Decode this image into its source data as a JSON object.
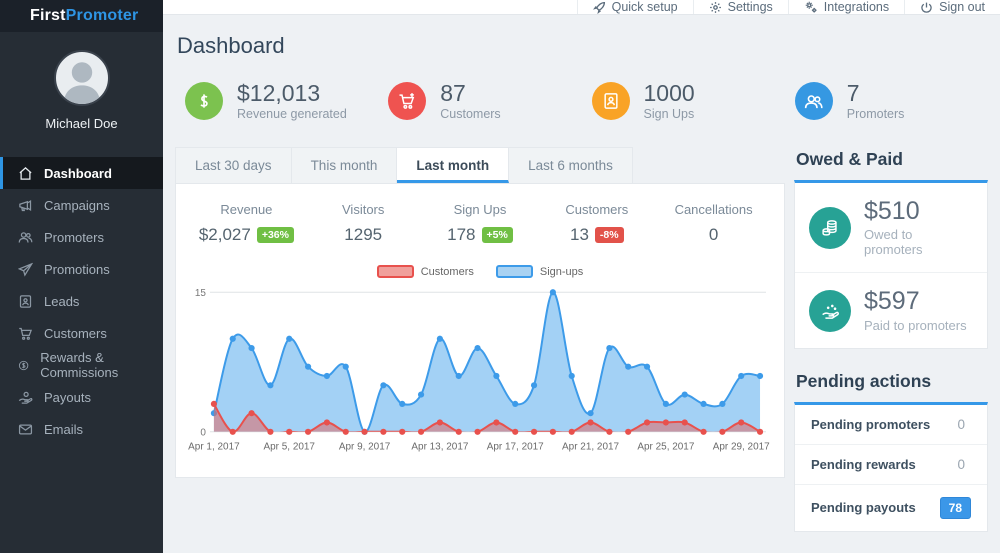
{
  "app": {
    "brand_first": "First",
    "brand_second": "Promoter"
  },
  "topbar": {
    "items": [
      {
        "label": "Quick setup",
        "icon": "rocket-icon"
      },
      {
        "label": "Settings",
        "icon": "gear-icon"
      },
      {
        "label": "Integrations",
        "icon": "gears-icon"
      },
      {
        "label": "Sign out",
        "icon": "power-icon"
      }
    ]
  },
  "sidebar": {
    "user_name": "Michael Doe",
    "items": [
      {
        "label": "Dashboard",
        "icon": "home-icon",
        "active": true
      },
      {
        "label": "Campaigns",
        "icon": "megaphone-icon",
        "active": false
      },
      {
        "label": "Promoters",
        "icon": "users-icon",
        "active": false
      },
      {
        "label": "Promotions",
        "icon": "paper-plane-icon",
        "active": false
      },
      {
        "label": "Leads",
        "icon": "id-card-icon",
        "active": false
      },
      {
        "label": "Customers",
        "icon": "cart-icon",
        "active": false
      },
      {
        "label": "Rewards & Commissions",
        "icon": "dollar-circle-icon",
        "active": false
      },
      {
        "label": "Payouts",
        "icon": "hand-money-icon",
        "active": false
      },
      {
        "label": "Emails",
        "icon": "envelope-icon",
        "active": false
      }
    ]
  },
  "page": {
    "title": "Dashboard"
  },
  "summary_cards": [
    {
      "value": "$12,013",
      "label": "Revenue generated",
      "icon": "dollar-icon",
      "color": "#7cc24f"
    },
    {
      "value": "87",
      "label": "Customers",
      "icon": "cart-plus-icon",
      "color": "#ef5350"
    },
    {
      "value": "1000",
      "label": "Sign Ups",
      "icon": "signup-card-icon",
      "color": "#f9a326"
    },
    {
      "value": "7",
      "label": "Promoters",
      "icon": "users-icon",
      "color": "#3598e2"
    }
  ],
  "tabs": [
    {
      "label": "Last 30 days",
      "active": false
    },
    {
      "label": "This month",
      "active": false
    },
    {
      "label": "Last month",
      "active": true
    },
    {
      "label": "Last 6 months",
      "active": false
    }
  ],
  "stats": [
    {
      "label": "Revenue",
      "value": "$2,027",
      "badge": "+36%",
      "badge_color": "#70bf44"
    },
    {
      "label": "Visitors",
      "value": "1295",
      "badge": null
    },
    {
      "label": "Sign Ups",
      "value": "178",
      "badge": "+5%",
      "badge_color": "#70bf44"
    },
    {
      "label": "Customers",
      "value": "13",
      "badge": "-8%",
      "badge_color": "#e2524a"
    },
    {
      "label": "Cancellations",
      "value": "0",
      "badge": null
    }
  ],
  "chart_data": {
    "type": "area",
    "legend_position": "top",
    "ylim": [
      0,
      15
    ],
    "yticks": [
      0,
      15
    ],
    "x_tick_indices": [
      0,
      4,
      8,
      12,
      16,
      20,
      24,
      28
    ],
    "x_tick_labels": [
      "Apr 1, 2017",
      "Apr 5, 2017",
      "Apr 9, 2017",
      "Apr 13, 2017",
      "Apr 17, 2017",
      "Apr 21, 2017",
      "Apr 25, 2017",
      "Apr 29, 2017"
    ],
    "series": [
      {
        "name": "Sign-ups",
        "color": "#3d9be9",
        "fill": "rgba(147,201,243,0.85)",
        "values": [
          2,
          10,
          9,
          5,
          10,
          7,
          6,
          7,
          0,
          5,
          3,
          4,
          10,
          6,
          9,
          6,
          3,
          5,
          15,
          6,
          2,
          9,
          7,
          7,
          3,
          4,
          3,
          3,
          6,
          6
        ]
      },
      {
        "name": "Customers",
        "color": "#e8514d",
        "fill": "rgba(225,104,100,0.55)",
        "values": [
          3,
          0,
          2,
          0,
          0,
          0,
          1,
          0,
          0,
          0,
          0,
          0,
          1,
          0,
          0,
          1,
          0,
          0,
          0,
          0,
          1,
          0,
          0,
          1,
          1,
          1,
          0,
          0,
          1,
          0
        ]
      }
    ]
  },
  "owed_paid": {
    "title": "Owed & Paid",
    "rows": [
      {
        "value": "$510",
        "label": "Owed to promoters",
        "icon": "coins-icon"
      },
      {
        "value": "$597",
        "label": "Paid to promoters",
        "icon": "hand-coins-icon"
      }
    ],
    "accent_color": "#27a295"
  },
  "pending": {
    "title": "Pending actions",
    "rows": [
      {
        "label": "Pending promoters",
        "value": "0",
        "badge": false
      },
      {
        "label": "Pending rewards",
        "value": "0",
        "badge": false
      },
      {
        "label": "Pending payouts",
        "value": "78",
        "badge": true
      }
    ],
    "badge_color": "#3b97e8"
  },
  "colors": {
    "accent_blue": "#2e95e4",
    "sidebar_bg": "#262d35",
    "page_bg": "#eef1f4",
    "green": "#7cc24f",
    "red": "#ef5350",
    "orange": "#f9a326",
    "blue": "#3598e2",
    "teal": "#27a295"
  }
}
